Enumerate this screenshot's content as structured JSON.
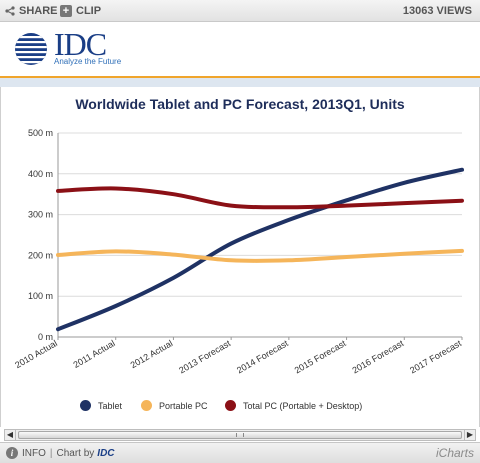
{
  "toolbar": {
    "share_label": "SHARE",
    "clip_label": "CLIP",
    "views": "13063 VIEWS"
  },
  "logo": {
    "word": "IDC",
    "tagline": "Analyze the Future"
  },
  "legend_colors": {
    "tablet": "#1f3264",
    "portable_pc": "#f5b55a",
    "total_pc": "#8b1016"
  },
  "chart_data": {
    "type": "line",
    "title": "Worldwide Tablet and PC Forecast, 2013Q1, Units",
    "xlabel": "",
    "ylabel": "",
    "categories": [
      "2010 Actual",
      "2011 Actual",
      "2012 Actual",
      "2013 Forecast",
      "2014 Forecast",
      "2015 Forecast",
      "2016 Forecast",
      "2017 Forecast"
    ],
    "ylim": [
      0,
      500
    ],
    "yticks": [
      "0 m",
      "100 m",
      "200 m",
      "300 m",
      "400 m",
      "500 m"
    ],
    "grid": true,
    "legend_position": "bottom",
    "series": [
      {
        "name": "Tablet",
        "color": "#1f3264",
        "values": [
          19,
          76,
          145,
          229,
          287,
          335,
          378,
          410
        ]
      },
      {
        "name": "Portable PC",
        "color": "#f5b55a",
        "values": [
          201,
          210,
          202,
          188,
          188,
          196,
          204,
          211
        ]
      },
      {
        "name": "Total PC (Portable + Desktop)",
        "color": "#8b1016",
        "values": [
          358,
          364,
          350,
          322,
          318,
          322,
          328,
          334
        ]
      }
    ]
  },
  "footer": {
    "info_label": "INFO",
    "chart_by_label": "Chart by",
    "brand": "IDC",
    "icharts_label": "iCharts"
  }
}
